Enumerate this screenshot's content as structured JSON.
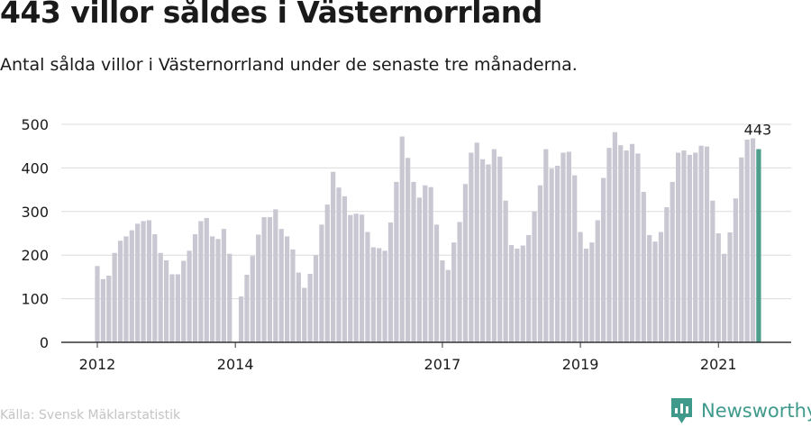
{
  "header": {
    "title": "443 villor såldes i Västernorrland",
    "subtitle": "Antal sålda villor i Västernorrland under de senaste tre månaderna."
  },
  "footer": {
    "source": "Källa: Svensk Mäklarstatistik",
    "brand_name": "Newsworthy",
    "brand_icon": "newsworthy-logo-icon"
  },
  "colors": {
    "bar": "#c8c7d2",
    "highlight": "#4d9e8c",
    "grid": "#dcdcdc",
    "axis": "#333333",
    "brand": "#3f9a8c"
  },
  "chart_data": {
    "type": "bar",
    "title": "443 villor såldes i Västernorrland",
    "subtitle": "Antal sålda villor i Västernorrland under de senaste tre månaderna.",
    "ylim": [
      0,
      500
    ],
    "yticks": [
      0,
      100,
      200,
      300,
      400,
      500
    ],
    "grid": true,
    "x_start": "2012-01",
    "x_end": "2021-07",
    "xtick_labels": [
      {
        "label": "2012",
        "date": "2012-01"
      },
      {
        "label": "2014",
        "date": "2014-01"
      },
      {
        "label": "2017",
        "date": "2017-01"
      },
      {
        "label": "2019",
        "date": "2019-01"
      },
      {
        "label": "2021",
        "date": "2021-01"
      }
    ],
    "series": [
      {
        "values": [
          175,
          145,
          153,
          205,
          233,
          243,
          257,
          272,
          278,
          280,
          248,
          205,
          188,
          156,
          156,
          187,
          210,
          248,
          278,
          285,
          243,
          237,
          260,
          203,
          0,
          105,
          155,
          198,
          247,
          287,
          287,
          305,
          260,
          243,
          213,
          160,
          125,
          157,
          200,
          270,
          316,
          391,
          355,
          335,
          292,
          295,
          293,
          253,
          218,
          216,
          210,
          275,
          368,
          472,
          423,
          368,
          332,
          360,
          356,
          270,
          188,
          166,
          229,
          276,
          363,
          435,
          458,
          420,
          408,
          443,
          426,
          325,
          223,
          215,
          222,
          246,
          300,
          360,
          443,
          398,
          405,
          435,
          437,
          383,
          253,
          215,
          229,
          280,
          377,
          446,
          482,
          452,
          440,
          455,
          433,
          345,
          246,
          231,
          253,
          310,
          368,
          435,
          440,
          430,
          435,
          451,
          449,
          325,
          250,
          203,
          252,
          330,
          424,
          465,
          468,
          443
        ]
      }
    ],
    "highlight": {
      "date": "2021-08",
      "value": 443,
      "label": "443"
    }
  }
}
